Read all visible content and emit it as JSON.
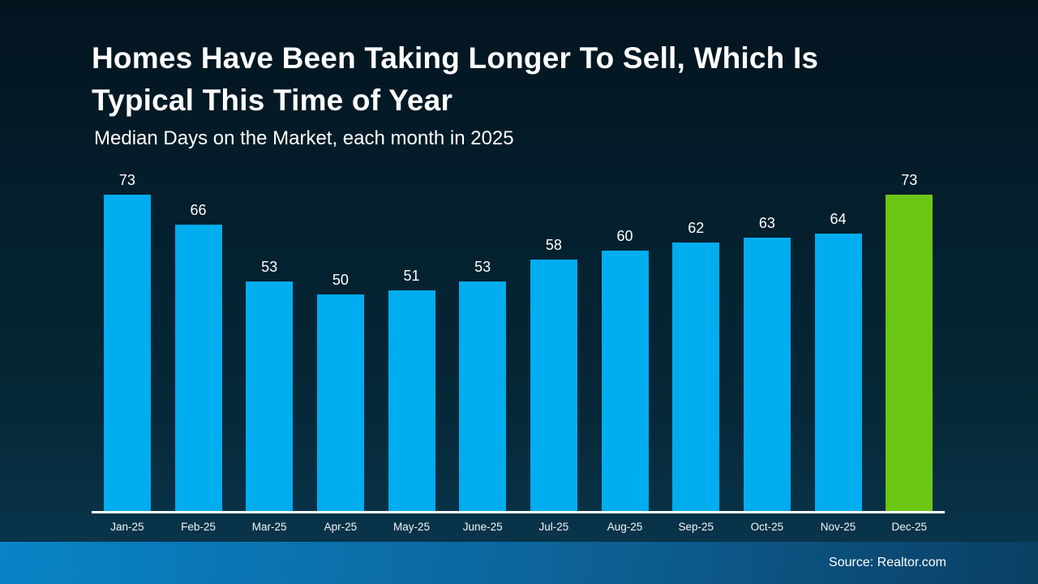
{
  "slide": {
    "title_lines": [
      "Homes Have Been Taking Longer To Sell, Which Is",
      "Typical This Time of Year"
    ],
    "subtitle": "Median Days on the Market, each month in 2025",
    "source": "Source: Realtor.com"
  },
  "colors": {
    "bar": "#00ADEF",
    "highlight": "#6CC614",
    "axis_line": "#FFFFFF",
    "text": "#FFFFFF",
    "background_top": "#03141F",
    "background_bottom": "#0A3850",
    "footer_left": "#0884C7",
    "footer_right": "#0A3F63"
  },
  "chart_data": {
    "type": "bar",
    "title": "Median Days on the Market, each month in 2025",
    "categories": [
      "Jan-25",
      "Feb-25",
      "Mar-25",
      "Apr-25",
      "May-25",
      "June-25",
      "Jul-25",
      "Aug-25",
      "Sep-25",
      "Oct-25",
      "Nov-25",
      "Dec-25"
    ],
    "values": [
      73,
      66,
      53,
      50,
      51,
      53,
      58,
      60,
      62,
      63,
      64,
      73
    ],
    "highlight_index": 11,
    "data_labels": true,
    "grid": false,
    "legend": false,
    "xlabel": "",
    "ylabel": "",
    "ylim": [
      0,
      73
    ]
  }
}
